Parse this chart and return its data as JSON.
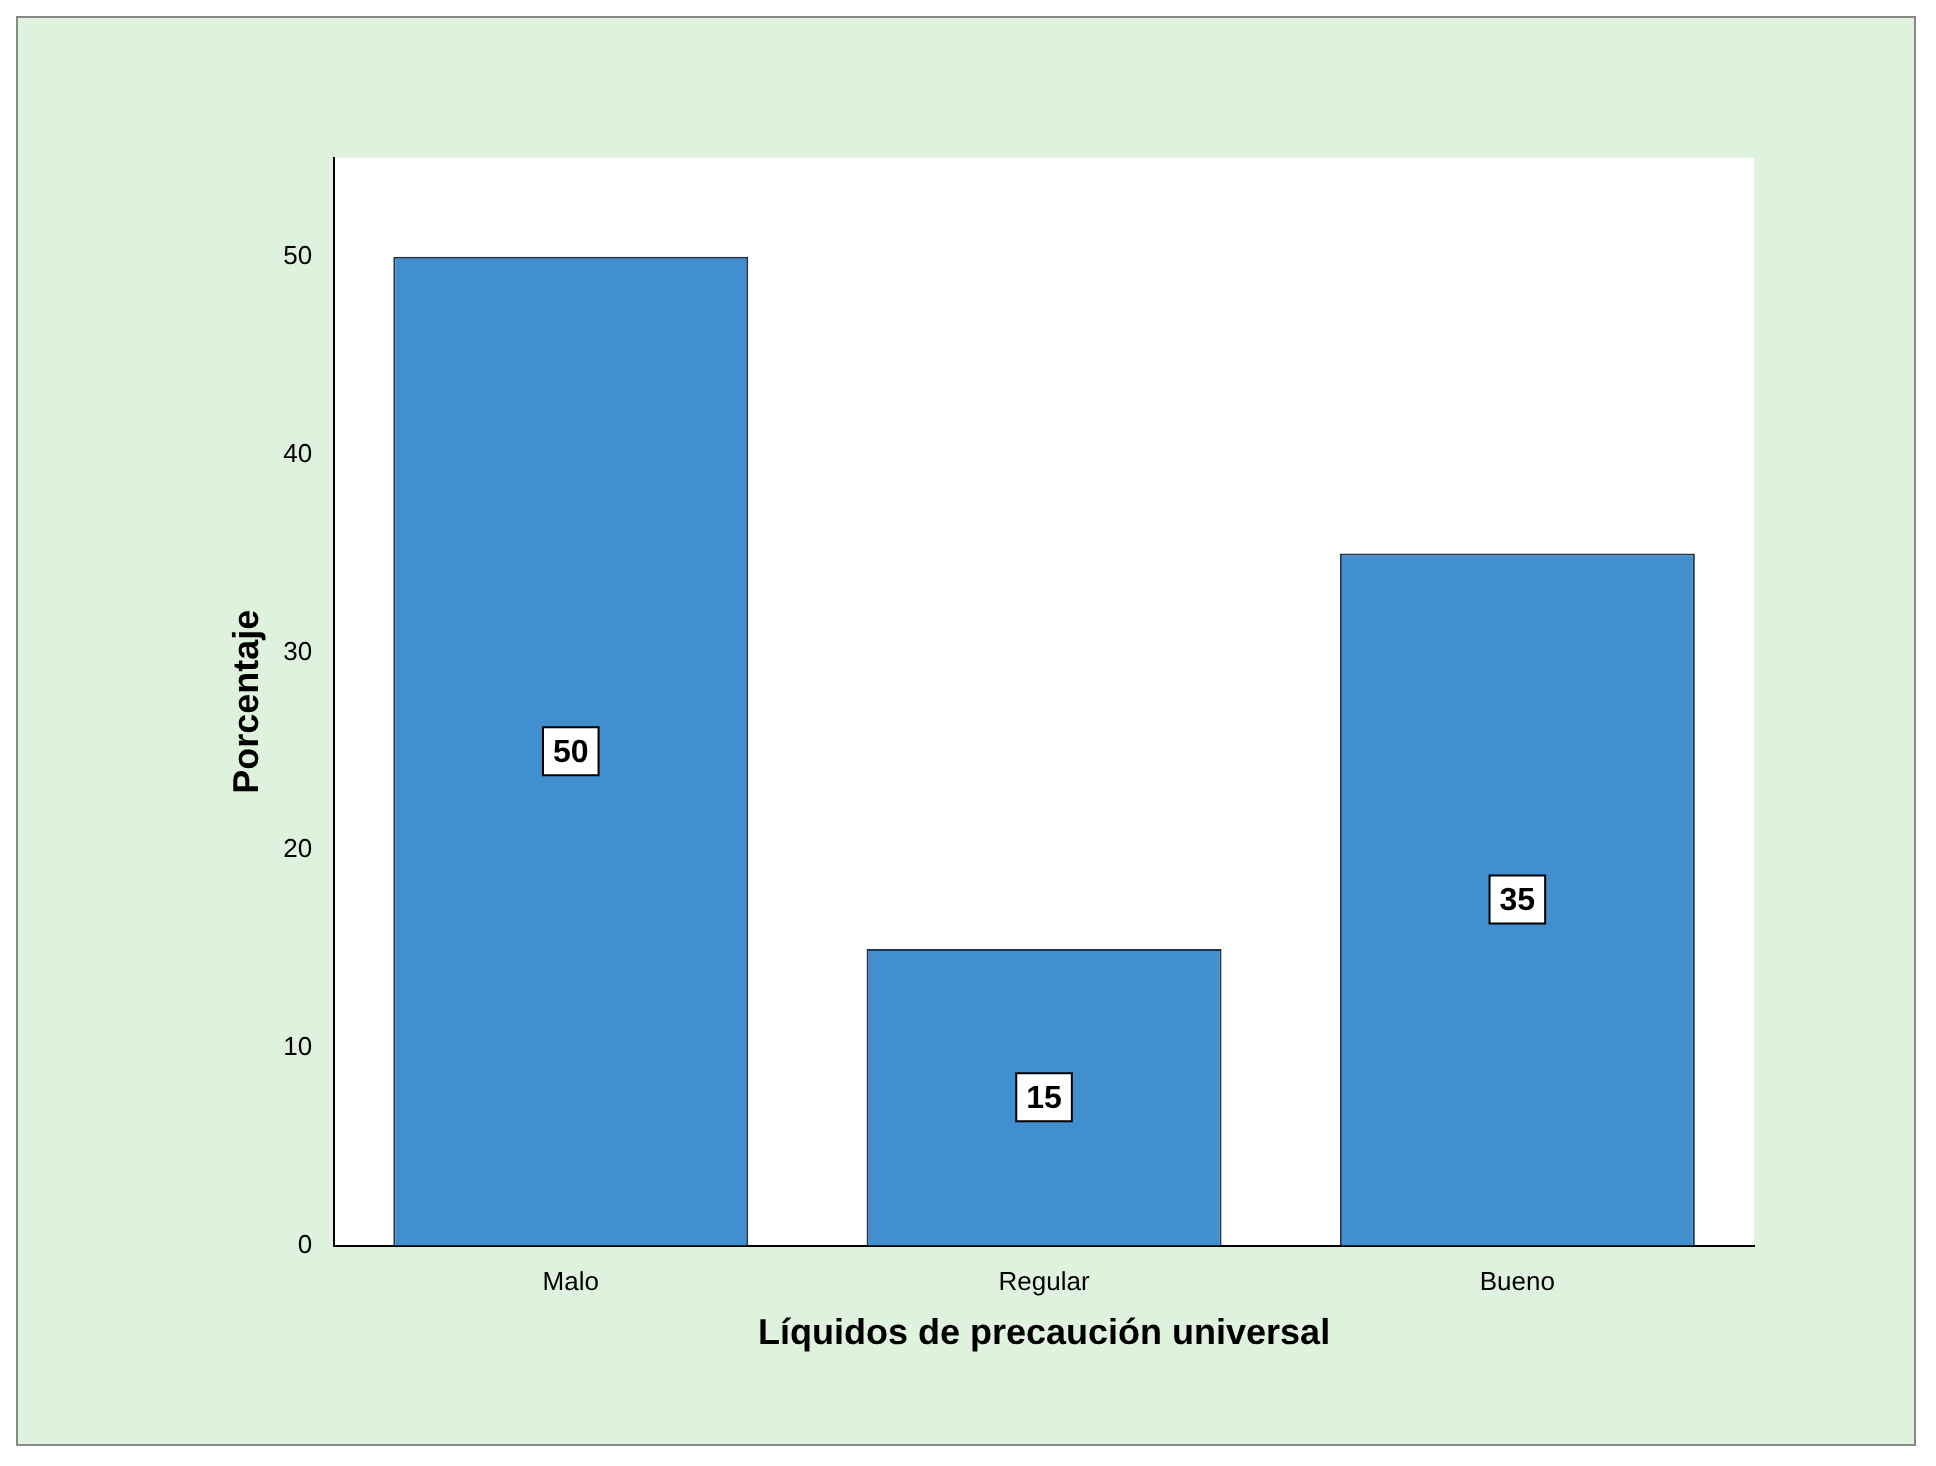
{
  "chart_data": {
    "type": "bar",
    "xlabel": "Líquidos de precaución universal",
    "ylabel": "Porcentaje",
    "categories": [
      "Malo",
      "Regular",
      "Bueno"
    ],
    "values": [
      50,
      15,
      35
    ],
    "color": "#428fd0",
    "ylim": [
      0,
      55
    ],
    "yticks": [
      0,
      10,
      20,
      30,
      40,
      50
    ],
    "grid": false,
    "legend": false,
    "data_labels": true
  }
}
